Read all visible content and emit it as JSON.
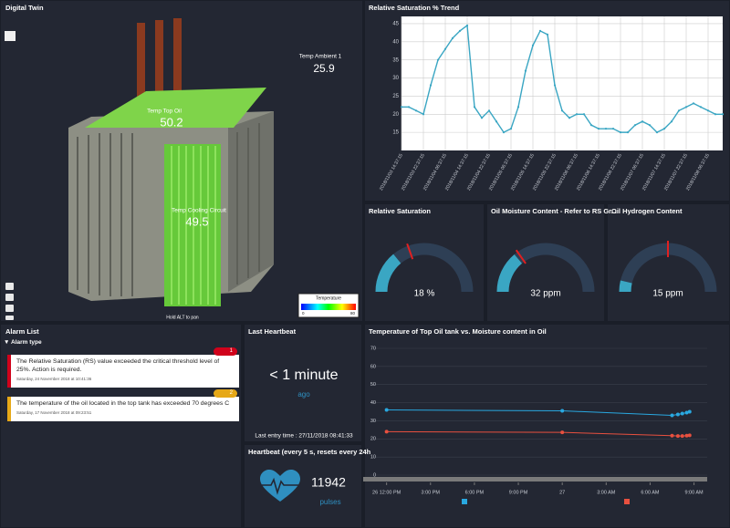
{
  "digital_twin": {
    "title": "Digital Twin",
    "ambient_label": "Temp Ambient 1",
    "ambient_value": 25.9,
    "top_oil_label": "Temp Top Oil",
    "top_oil_value": 50.2,
    "cooling_label": "Temp Cooling Circuit",
    "cooling_value": 49.5,
    "scale_title": "Temperature",
    "scale_min": 0,
    "scale_max": 80,
    "hint": "Hold ALT to pan"
  },
  "trend": {
    "type": "line",
    "title": "Relative Saturation % Trend",
    "color": "#3aa6c3",
    "grid": true,
    "categories": [
      "2018/11/03 14:37:15",
      null,
      null,
      "2018/11/03 22:37:15",
      null,
      null,
      "2018/11/04 06:37:15",
      null,
      null,
      "2018/11/04 14:37:15",
      null,
      null,
      "2018/11/04 22:37:15",
      null,
      null,
      "2018/11/05 06:37:15",
      null,
      null,
      "2018/11/05 14:37:15",
      null,
      null,
      "2018/11/05 22:37:15",
      null,
      null,
      "2018/11/06 06:37:15",
      null,
      null,
      "2018/11/06 14:37:15",
      null,
      null,
      "2018/11/06 22:37:15",
      null,
      null,
      "2018/11/07 06:37:15",
      null,
      null,
      "2018/11/07 14:37:15",
      null,
      null,
      "2018/11/07 22:37:15",
      null,
      null,
      "2018/11/08 06:37:15",
      null,
      null
    ],
    "values": [
      22,
      22,
      21,
      20,
      28,
      35,
      38,
      41,
      43,
      44.5,
      22,
      19,
      21,
      18,
      15,
      16,
      22,
      32,
      39,
      43,
      42,
      28,
      21,
      19,
      20,
      20,
      17,
      16,
      16,
      16,
      15,
      15,
      17,
      18,
      17,
      15,
      16,
      18,
      21,
      22,
      23,
      22,
      21,
      20,
      20
    ],
    "ylim": [
      10,
      47
    ],
    "yticks": [
      15,
      20,
      25,
      30,
      35,
      40,
      45
    ]
  },
  "gauges": [
    {
      "title": "Relative Saturation",
      "value": 18,
      "value_label": "18 %",
      "range": [
        0,
        64
      ],
      "threshold": 25
    },
    {
      "title": "Oil Moisture Content - Refer to RS Gr...",
      "value": 32,
      "value_label": "32 ppm",
      "range": [
        0,
        115
      ],
      "threshold": 35
    },
    {
      "title": "Oil Hydrogen Content",
      "value": 15,
      "value_label": "15 ppm",
      "range": [
        0,
        200
      ],
      "threshold": 100
    }
  ],
  "alarms": {
    "title": "Alarm List",
    "filter": "Alarm type",
    "items": [
      {
        "badge": "1",
        "color": "#d0021b",
        "message": "The Relative Saturation (RS) value exceeded the critical threshold level of 25%. Action is required.",
        "time": "Saturday, 24 November 2018 at 10:41:36"
      },
      {
        "badge": "2",
        "color": "#e6a817",
        "message": "The temperature of the oil located in the top tank has exceeded 70 degrees C",
        "time": "Saturday, 17 November 2018 at 09:23:51"
      }
    ]
  },
  "last_heartbeat": {
    "title": "Last Heartbeat",
    "value": "< 1 minute",
    "unit": "ago",
    "entry": "Last entry time : 27/11/2018 08:41:33"
  },
  "heartbeat": {
    "title": "Heartbeat (every 5 s, resets every 24h)",
    "count": 11942,
    "unit": "pulses"
  },
  "combo": {
    "type": "line",
    "title": "Temperature of Top Oil tank vs. Moisture content in Oil",
    "xlim": [
      -1.1,
      21.9
    ],
    "xticks": [
      {
        "value": 0,
        "label": "26 12:00 PM"
      },
      {
        "value": 3,
        "label": "3:00 PM"
      },
      {
        "value": 6,
        "label": "6:00 PM"
      },
      {
        "value": 9,
        "label": "9:00 PM"
      },
      {
        "value": 12,
        "label": "27"
      },
      {
        "value": 15,
        "label": "3:00 AM"
      },
      {
        "value": 18,
        "label": "6:00 AM"
      },
      {
        "value": 21,
        "label": "9:00 AM"
      }
    ],
    "ylim": [
      0,
      70
    ],
    "yticks": [
      0,
      10,
      20,
      30,
      40,
      50,
      60,
      70
    ],
    "series": [
      {
        "color": "#29a8e0",
        "x": [
          0,
          12,
          19.5,
          19.9,
          20.2,
          20.5,
          20.7
        ],
        "values": [
          36,
          35.5,
          33,
          33.5,
          34,
          34.5,
          35
        ]
      },
      {
        "color": "#e8503f",
        "x": [
          0,
          12,
          19.5,
          19.9,
          20.2,
          20.5,
          20.7
        ],
        "values": [
          24,
          23.6,
          21.8,
          21.6,
          21.6,
          21.8,
          22
        ]
      }
    ]
  }
}
